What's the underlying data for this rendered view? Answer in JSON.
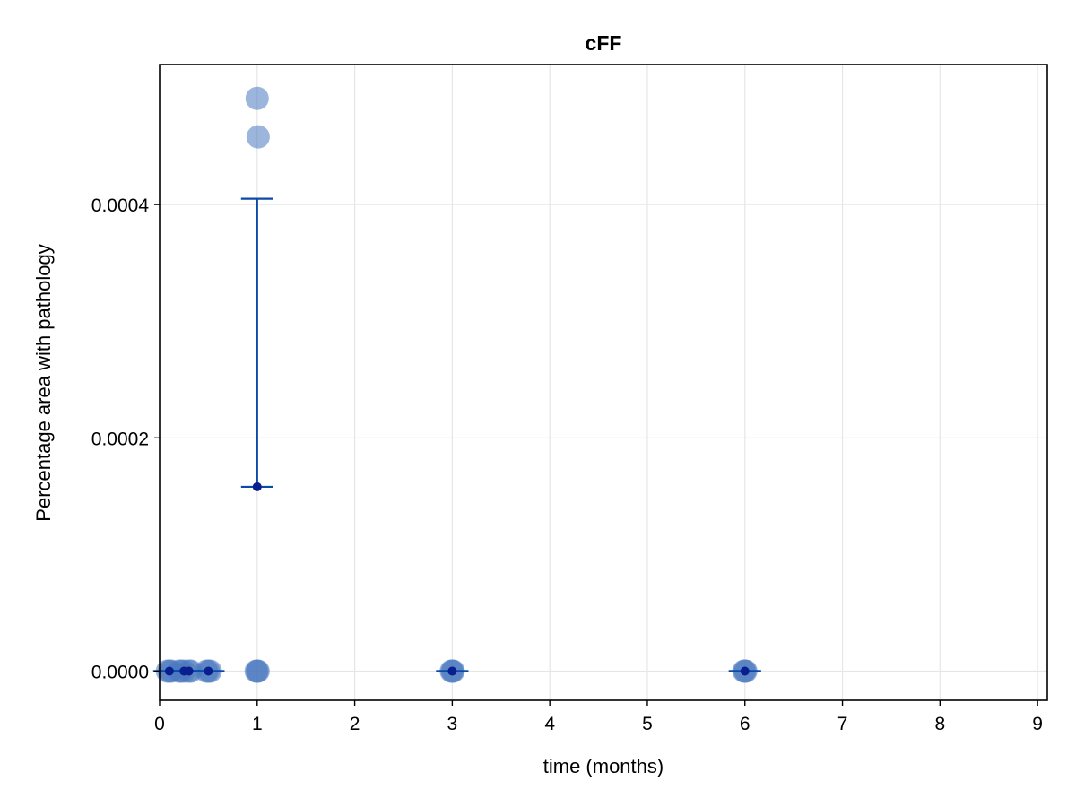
{
  "chart_data": {
    "type": "scatter",
    "title": "cFF",
    "xlabel": "time (months)",
    "ylabel": "Percentage area with pathology",
    "xlim": [
      0,
      9.1
    ],
    "ylim": [
      -2.5e-05,
      0.00052
    ],
    "x_ticks": [
      0,
      1,
      2,
      3,
      4,
      5,
      6,
      7,
      8,
      9
    ],
    "x_tick_labels": [
      "0",
      "1",
      "2",
      "3",
      "4",
      "5",
      "6",
      "7",
      "8",
      "9"
    ],
    "y_ticks": [
      0,
      0.0002,
      0.0004
    ],
    "y_tick_labels": [
      "0.0000",
      "0.0002",
      "0.0004"
    ],
    "grid": true,
    "colors": {
      "points": "#4a78c0",
      "mean": "#0a1f8f",
      "errorbar": "#0b4aa8",
      "grid": "#e6e6e6"
    },
    "series": [
      {
        "role": "observations",
        "points": [
          {
            "x": 0.08,
            "y": 0
          },
          {
            "x": 0.1,
            "y": 0
          },
          {
            "x": 0.12,
            "y": 0
          },
          {
            "x": 0.2,
            "y": 0
          },
          {
            "x": 0.22,
            "y": 0
          },
          {
            "x": 0.25,
            "y": 0
          },
          {
            "x": 0.3,
            "y": 0
          },
          {
            "x": 0.32,
            "y": 0
          },
          {
            "x": 0.48,
            "y": 0
          },
          {
            "x": 0.5,
            "y": 0
          },
          {
            "x": 0.52,
            "y": 0
          },
          {
            "x": 0.99,
            "y": 0
          },
          {
            "x": 1.0,
            "y": 0
          },
          {
            "x": 1.01,
            "y": 0
          },
          {
            "x": 1.0,
            "y": 0.000491
          },
          {
            "x": 1.01,
            "y": 0.000458
          },
          {
            "x": 2.99,
            "y": 0
          },
          {
            "x": 3.0,
            "y": 0
          },
          {
            "x": 3.01,
            "y": 0
          },
          {
            "x": 5.99,
            "y": 0
          },
          {
            "x": 6.0,
            "y": 0
          },
          {
            "x": 6.01,
            "y": 0
          }
        ]
      },
      {
        "role": "mean_with_error",
        "points": [
          {
            "x": 0.1,
            "y": 0,
            "lo": 0,
            "hi": 0
          },
          {
            "x": 0.25,
            "y": 0,
            "lo": 0,
            "hi": 0
          },
          {
            "x": 0.3,
            "y": 0,
            "lo": 0,
            "hi": 0
          },
          {
            "x": 0.5,
            "y": 0,
            "lo": 0,
            "hi": 0
          },
          {
            "x": 1.0,
            "y": 0.000158,
            "lo": 0.000158,
            "hi": 0.000405
          },
          {
            "x": 3.0,
            "y": 0,
            "lo": 0,
            "hi": 0
          },
          {
            "x": 6.0,
            "y": 0,
            "lo": 0,
            "hi": 0
          }
        ]
      }
    ]
  }
}
